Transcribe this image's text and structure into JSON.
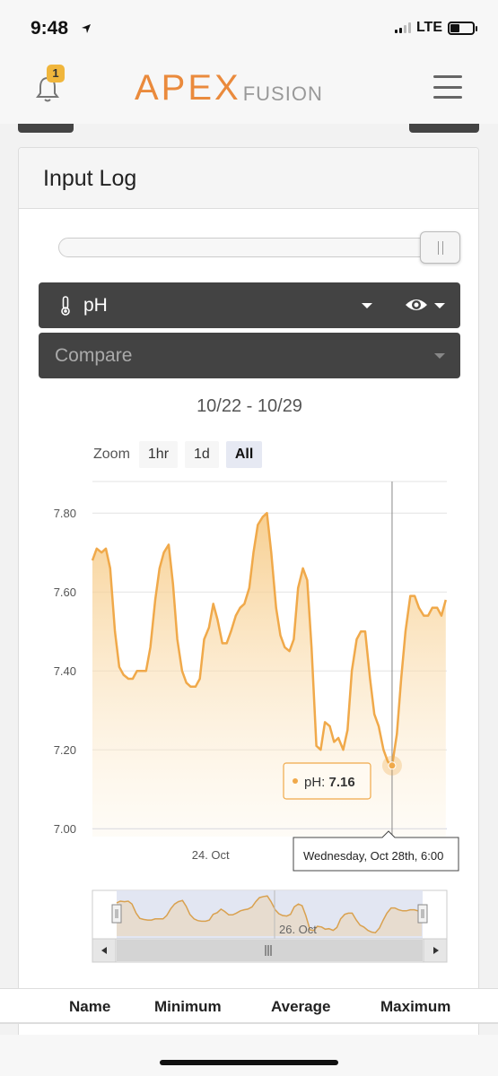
{
  "status": {
    "time": "9:48",
    "network": "LTE"
  },
  "header": {
    "notifications_count": "1",
    "logo_main": "APEX",
    "logo_sub": "FUSION"
  },
  "panel": {
    "title": "Input Log"
  },
  "probe_select": {
    "value": "pH"
  },
  "compare_select": {
    "placeholder": "Compare"
  },
  "date_range": "10/22 - 10/29",
  "zoom": {
    "label": "Zoom",
    "options": [
      "1hr",
      "1d",
      "All"
    ],
    "active": "All"
  },
  "chart_data": {
    "type": "area",
    "series": [
      {
        "name": "pH",
        "points": [
          [
            0.0,
            7.68
          ],
          [
            0.08,
            7.71
          ],
          [
            0.17,
            7.7
          ],
          [
            0.25,
            7.71
          ],
          [
            0.33,
            7.66
          ],
          [
            0.42,
            7.5
          ],
          [
            0.5,
            7.41
          ],
          [
            0.58,
            7.39
          ],
          [
            0.67,
            7.38
          ],
          [
            0.75,
            7.38
          ],
          [
            0.83,
            7.4
          ],
          [
            0.92,
            7.4
          ],
          [
            1.0,
            7.4
          ],
          [
            1.08,
            7.46
          ],
          [
            1.17,
            7.58
          ],
          [
            1.25,
            7.66
          ],
          [
            1.33,
            7.7
          ],
          [
            1.42,
            7.72
          ],
          [
            1.5,
            7.62
          ],
          [
            1.58,
            7.48
          ],
          [
            1.67,
            7.4
          ],
          [
            1.75,
            7.37
          ],
          [
            1.83,
            7.36
          ],
          [
            1.92,
            7.36
          ],
          [
            2.0,
            7.38
          ],
          [
            2.08,
            7.48
          ],
          [
            2.17,
            7.51
          ],
          [
            2.25,
            7.57
          ],
          [
            2.33,
            7.53
          ],
          [
            2.42,
            7.47
          ],
          [
            2.5,
            7.47
          ],
          [
            2.58,
            7.5
          ],
          [
            2.67,
            7.54
          ],
          [
            2.75,
            7.56
          ],
          [
            2.83,
            7.57
          ],
          [
            2.92,
            7.61
          ],
          [
            3.0,
            7.7
          ],
          [
            3.08,
            7.77
          ],
          [
            3.17,
            7.79
          ],
          [
            3.25,
            7.8
          ],
          [
            3.33,
            7.7
          ],
          [
            3.42,
            7.56
          ],
          [
            3.5,
            7.49
          ],
          [
            3.58,
            7.46
          ],
          [
            3.67,
            7.45
          ],
          [
            3.75,
            7.48
          ],
          [
            3.83,
            7.61
          ],
          [
            3.92,
            7.66
          ],
          [
            4.0,
            7.63
          ],
          [
            4.08,
            7.46
          ],
          [
            4.17,
            7.21
          ],
          [
            4.25,
            7.2
          ],
          [
            4.33,
            7.27
          ],
          [
            4.42,
            7.26
          ],
          [
            4.5,
            7.22
          ],
          [
            4.58,
            7.23
          ],
          [
            4.67,
            7.2
          ],
          [
            4.75,
            7.25
          ],
          [
            4.83,
            7.4
          ],
          [
            4.92,
            7.48
          ],
          [
            5.0,
            7.5
          ],
          [
            5.08,
            7.5
          ],
          [
            5.17,
            7.38
          ],
          [
            5.25,
            7.29
          ],
          [
            5.33,
            7.26
          ],
          [
            5.42,
            7.2
          ],
          [
            5.5,
            7.17
          ],
          [
            5.58,
            7.16
          ],
          [
            5.67,
            7.24
          ],
          [
            5.75,
            7.38
          ],
          [
            5.83,
            7.5
          ],
          [
            5.92,
            7.59
          ],
          [
            6.0,
            7.59
          ],
          [
            6.08,
            7.56
          ],
          [
            6.17,
            7.54
          ],
          [
            6.25,
            7.54
          ],
          [
            6.33,
            7.56
          ],
          [
            6.42,
            7.56
          ],
          [
            6.5,
            7.54
          ],
          [
            6.58,
            7.58
          ]
        ]
      }
    ],
    "x_start_label": "22 Oct",
    "x_ticks": [
      "24. Oct",
      "26. Oct"
    ],
    "y_ticks": [
      "7.00",
      "7.20",
      "7.40",
      "7.60",
      "7.80"
    ],
    "ylim": [
      6.98,
      7.88
    ],
    "grid": true,
    "tooltip": {
      "series": "pH",
      "label": "pH: ",
      "value": "7.16",
      "date": "Wednesday, Oct 28th, 6:00"
    },
    "navigator_label": "26. Oct",
    "colors": {
      "line": "#f0a94a",
      "fill": "#f9d9a2",
      "navigator_band": "#dfe3f1"
    }
  },
  "stats_table": {
    "columns": [
      "Name",
      "Minimum",
      "Average",
      "Maximum"
    ]
  }
}
